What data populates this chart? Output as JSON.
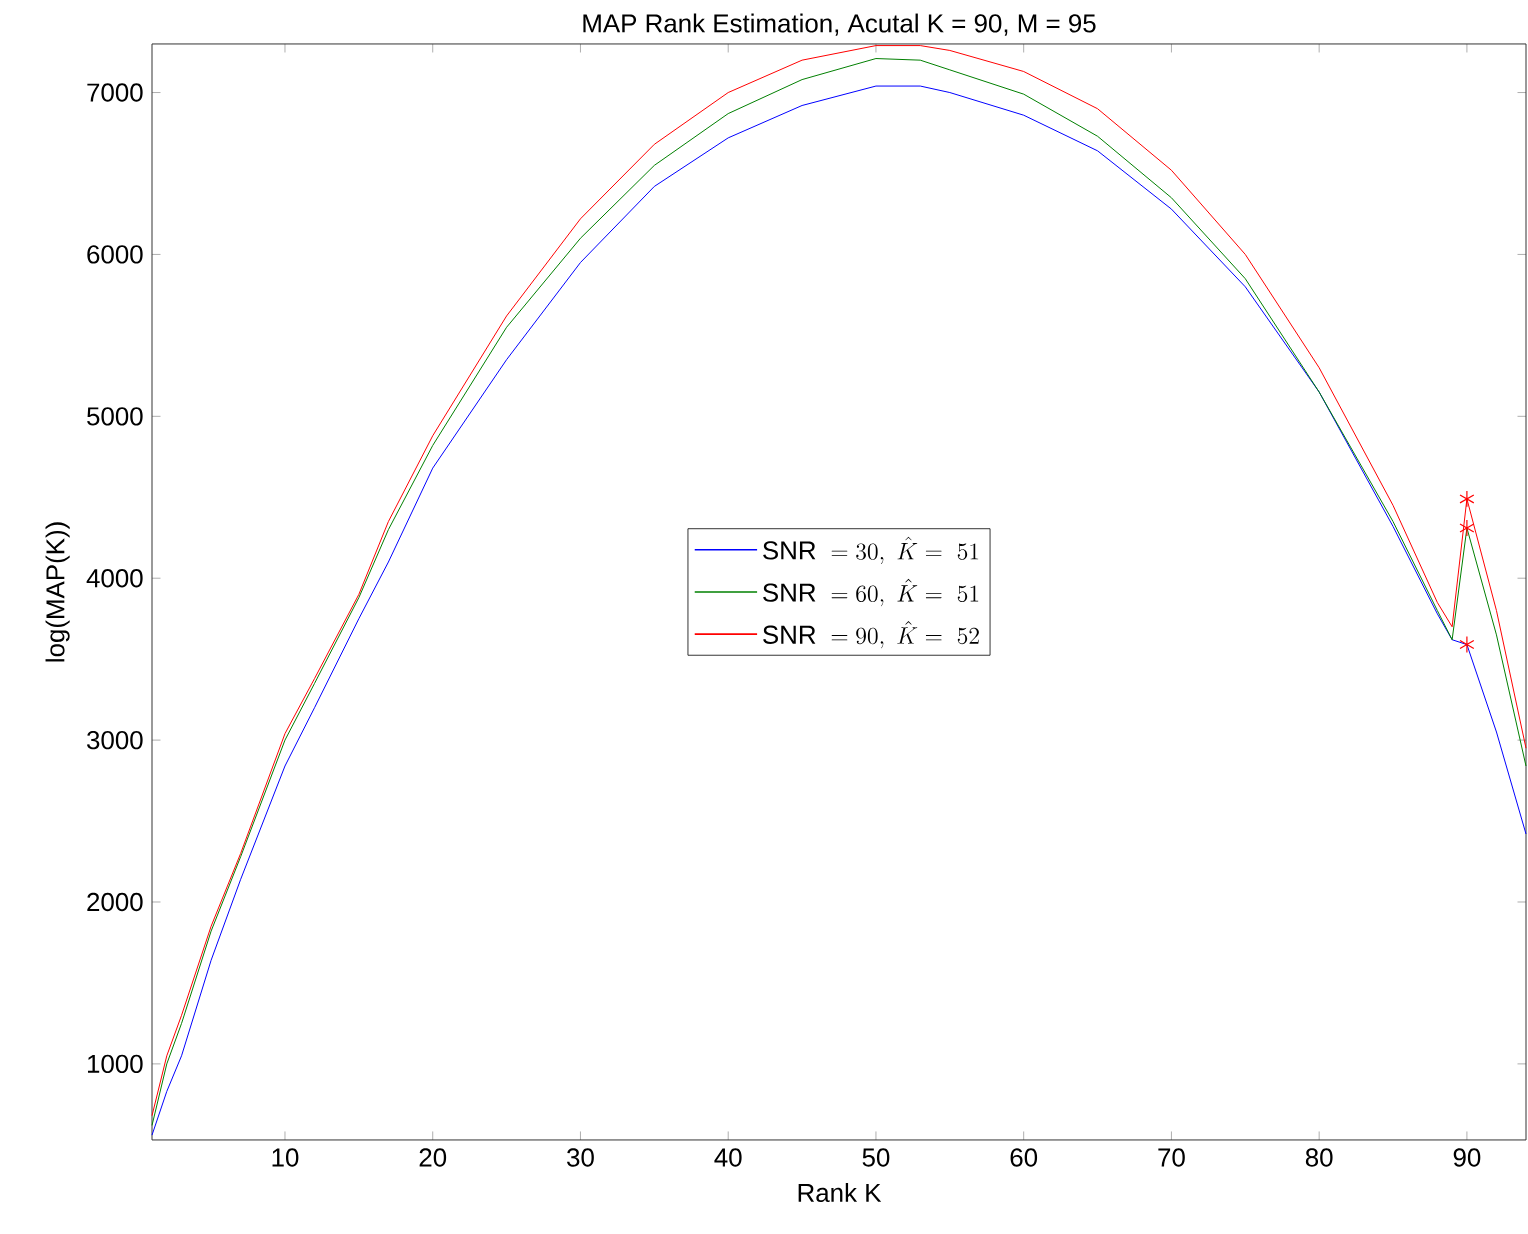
{
  "chart_data": {
    "type": "line",
    "title": "MAP Rank Estimation, Acutal K = 90, M = 95",
    "xlabel": "Rank K",
    "ylabel": "log(MAP(K))",
    "x": [
      1,
      2,
      3,
      5,
      7,
      10,
      12,
      15,
      17,
      20,
      25,
      30,
      35,
      40,
      45,
      50,
      53,
      55,
      60,
      65,
      70,
      75,
      80,
      85,
      88,
      89,
      90,
      92,
      94
    ],
    "series": [
      {
        "name": "\\mathrm{SNR}\\ = 30,\\ \\hat{K} =\\ 51",
        "color": "#0000ff",
        "values": [
          560,
          830,
          1050,
          1640,
          2140,
          2840,
          3200,
          3750,
          4100,
          4680,
          5350,
          5950,
          6420,
          6720,
          6920,
          7040,
          7040,
          7000,
          6860,
          6640,
          6280,
          5800,
          5150,
          4320,
          3780,
          3620,
          3590,
          3050,
          2420
        ]
      },
      {
        "name": "\\mathrm{SNR}\\ = 60,\\ \\hat{K} =\\ 51",
        "color": "#008000",
        "values": [
          620,
          1000,
          1250,
          1820,
          2280,
          3000,
          3350,
          3880,
          4300,
          4820,
          5550,
          6100,
          6550,
          6870,
          7080,
          7210,
          7200,
          7140,
          6990,
          6730,
          6350,
          5850,
          5150,
          4350,
          3800,
          3620,
          4310,
          3650,
          2840
        ]
      },
      {
        "name": "\\mathrm{SNR}\\ = 90,\\ \\hat{K} =\\ 52",
        "color": "#ff0000",
        "values": [
          680,
          1050,
          1300,
          1850,
          2300,
          3040,
          3380,
          3900,
          4350,
          4880,
          5620,
          6220,
          6680,
          7000,
          7200,
          7290,
          7290,
          7260,
          7130,
          6900,
          6520,
          6000,
          5300,
          4450,
          3850,
          3700,
          4490,
          3800,
          2950
        ]
      },
      {
        "type": "scatter",
        "color": "#ff0000",
        "marker": "cross",
        "values": [
          null,
          null,
          null,
          null,
          null,
          null,
          null,
          null,
          null,
          null,
          null,
          null,
          null,
          null,
          null,
          null,
          null,
          null,
          null,
          null,
          null,
          null,
          null,
          null,
          null,
          null,
          3590,
          null,
          null
        ]
      },
      {
        "type": "scatter",
        "color": "#ff0000",
        "marker": "cross",
        "values": [
          null,
          null,
          null,
          null,
          null,
          null,
          null,
          null,
          null,
          null,
          null,
          null,
          null,
          null,
          null,
          null,
          null,
          null,
          null,
          null,
          null,
          null,
          null,
          null,
          null,
          null,
          4310,
          null,
          null
        ]
      },
      {
        "type": "scatter",
        "color": "#ff0000",
        "marker": "cross",
        "values": [
          null,
          null,
          null,
          null,
          null,
          null,
          null,
          null,
          null,
          null,
          null,
          null,
          null,
          null,
          null,
          null,
          null,
          null,
          null,
          null,
          null,
          null,
          null,
          null,
          null,
          null,
          4490,
          null,
          null
        ]
      }
    ],
    "xlim": [
      1,
      94
    ],
    "ylim": [
      530,
      7300
    ],
    "xticks": [
      10,
      20,
      30,
      40,
      50,
      60,
      70,
      80,
      90
    ],
    "yticks": [
      1000,
      2000,
      3000,
      4000,
      5000,
      6000,
      7000
    ],
    "grid": false,
    "legend": "center"
  }
}
